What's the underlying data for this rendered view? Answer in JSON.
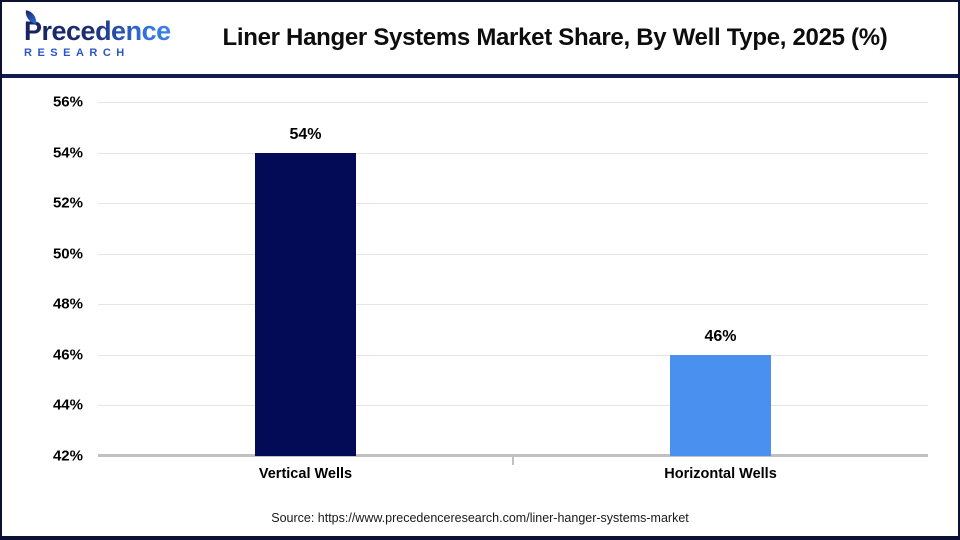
{
  "header": {
    "brand": {
      "name": "Precedence",
      "subtitle": "RESEARCH"
    },
    "title": "Liner Hanger Systems Market Share, By Well Type, 2025 (%)"
  },
  "chart_data": {
    "type": "bar",
    "title": "Liner Hanger Systems Market Share, By Well Type, 2025 (%)",
    "categories": [
      "Vertical Wells",
      "Horizontal Wells"
    ],
    "values": [
      54,
      46
    ],
    "value_labels": [
      "54%",
      "46%"
    ],
    "bar_colors": [
      "#030b56",
      "#4a90ee"
    ],
    "xlabel": "",
    "ylabel": "",
    "ylim": [
      42,
      56
    ],
    "ytick_step": 2,
    "ytick_labels": [
      "42%",
      "44%",
      "46%",
      "48%",
      "50%",
      "52%",
      "54%",
      "56%"
    ],
    "grid": true,
    "legend": false
  },
  "footer": {
    "source": "Source: https://www.precedenceresearch.com/liner-hanger-systems-market"
  },
  "colors": {
    "frame_border": "#0b1134",
    "header_rule": "#131c4e",
    "gridline": "#e5e5e5",
    "baseline": "#c0c0c0",
    "logo_navy": "#16235f",
    "logo_blue": "#2f6fdf",
    "text": "#000000"
  }
}
